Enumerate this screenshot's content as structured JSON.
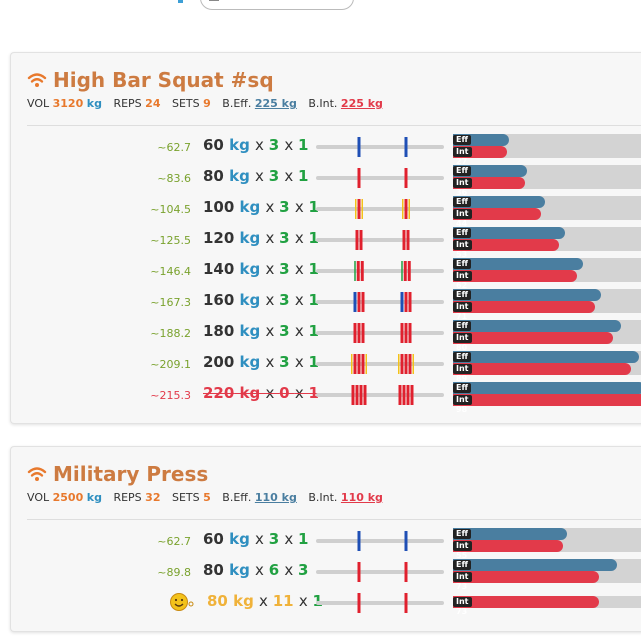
{
  "unit": "kg",
  "exercises": [
    {
      "title": "High Bar Squat #sq",
      "stats": {
        "vol_label": "VOL",
        "vol": "3120",
        "vol_unit": "kg",
        "reps_label": "REPS",
        "reps": "24",
        "sets_label": "SETS",
        "sets": "9",
        "beff_label": "B.Eff.",
        "beff": "225 kg",
        "bint_label": "B.Int.",
        "bint": "225 kg"
      },
      "sets": [
        {
          "est": "~62.7",
          "weight": "60",
          "reps": "3",
          "sets": "1",
          "state": "normal",
          "plates": [
            {
              "c": "#1f4fb5",
              "t": 2
            }
          ],
          "eff": 28,
          "int": 27
        },
        {
          "est": "~83.6",
          "weight": "80",
          "reps": "3",
          "sets": "1",
          "state": "normal",
          "plates": [
            {
              "c": "#e0202e",
              "t": 2
            }
          ],
          "eff": 37,
          "int": 36
        },
        {
          "est": "~104.5",
          "weight": "100",
          "reps": "3",
          "sets": "1",
          "state": "normal",
          "plates": [
            {
              "c": "#f3c21a",
              "t": 1
            },
            {
              "c": "#e0202e",
              "t": 2
            },
            {
              "c": "#f3c21a",
              "t": 1
            }
          ],
          "eff": 46,
          "int": 44
        },
        {
          "est": "~125.5",
          "weight": "120",
          "reps": "3",
          "sets": "1",
          "state": "normal",
          "plates": [
            {
              "c": "#e0202e",
              "t": 2
            },
            {
              "c": "#e0202e",
              "t": 2
            }
          ],
          "eff": 56,
          "int": 53
        },
        {
          "est": "~146.4",
          "weight": "140",
          "reps": "3",
          "sets": "1",
          "state": "normal",
          "plates": [
            {
              "c": "#21a142",
              "t": 1
            },
            {
              "c": "#e0202e",
              "t": 2
            },
            {
              "c": "#e0202e",
              "t": 2
            }
          ],
          "eff": 65,
          "int": 62
        },
        {
          "est": "~167.3",
          "weight": "160",
          "reps": "3",
          "sets": "1",
          "state": "normal",
          "plates": [
            {
              "c": "#1f4fb5",
              "t": 2
            },
            {
              "c": "#e0202e",
              "t": 2
            },
            {
              "c": "#e0202e",
              "t": 2
            }
          ],
          "eff": 74,
          "int": 71
        },
        {
          "est": "~188.2",
          "weight": "180",
          "reps": "3",
          "sets": "1",
          "state": "normal",
          "plates": [
            {
              "c": "#e0202e",
              "t": 2
            },
            {
              "c": "#e0202e",
              "t": 2
            },
            {
              "c": "#e0202e",
              "t": 2
            }
          ],
          "eff": 84,
          "int": 80
        },
        {
          "est": "~209.1",
          "weight": "200",
          "reps": "3",
          "sets": "1",
          "state": "normal",
          "plates": [
            {
              "c": "#f3c21a",
              "t": 1
            },
            {
              "c": "#e0202e",
              "t": 2
            },
            {
              "c": "#e0202e",
              "t": 2
            },
            {
              "c": "#e0202e",
              "t": 2
            },
            {
              "c": "#f3c21a",
              "t": 1
            }
          ],
          "eff": 93,
          "int": 89
        },
        {
          "est": "~215.3",
          "weight": "220",
          "reps": "0",
          "sets": "1",
          "state": "failed",
          "plates": [
            {
              "c": "#e0202e",
              "t": 2
            },
            {
              "c": "#e0202e",
              "t": 2
            },
            {
              "c": "#e0202e",
              "t": 2
            },
            {
              "c": "#e0202e",
              "t": 2
            }
          ],
          "eff": 96,
          "int": 98
        }
      ]
    },
    {
      "title": "Military Press",
      "stats": {
        "vol_label": "VOL",
        "vol": "2500",
        "vol_unit": "kg",
        "reps_label": "REPS",
        "reps": "32",
        "sets_label": "SETS",
        "sets": "5",
        "beff_label": "B.Eff.",
        "beff": "110 kg",
        "bint_label": "B.Int.",
        "bint": "110 kg"
      },
      "sets": [
        {
          "est": "~62.7",
          "weight": "60",
          "reps": "3",
          "sets": "1",
          "state": "normal",
          "plates": [
            {
              "c": "#1f4fb5",
              "t": 2
            }
          ],
          "eff": 57,
          "int": 55
        },
        {
          "est": "~89.8",
          "weight": "80",
          "reps": "6",
          "sets": "3",
          "state": "normal",
          "plates": [
            {
              "c": "#e0202e",
              "t": 2
            }
          ],
          "eff": 82,
          "int": 73
        },
        {
          "est": "",
          "weight": "80",
          "reps": "11",
          "sets": "1",
          "state": "warm",
          "plates": [
            {
              "c": "#e0202e",
              "t": 2
            }
          ],
          "eff": null,
          "int": 73
        }
      ]
    }
  ],
  "labels": {
    "eff": "Eff",
    "int": "Int",
    "x": "x"
  },
  "icons": {
    "header": "wifi-icon",
    "smiley": "smiley-icon"
  },
  "colors": {
    "title": "#cd7b41",
    "eff": "#4a7ea0",
    "int": "#e23a4a",
    "reps": "#21a142",
    "unit": "#2f8fc0"
  }
}
